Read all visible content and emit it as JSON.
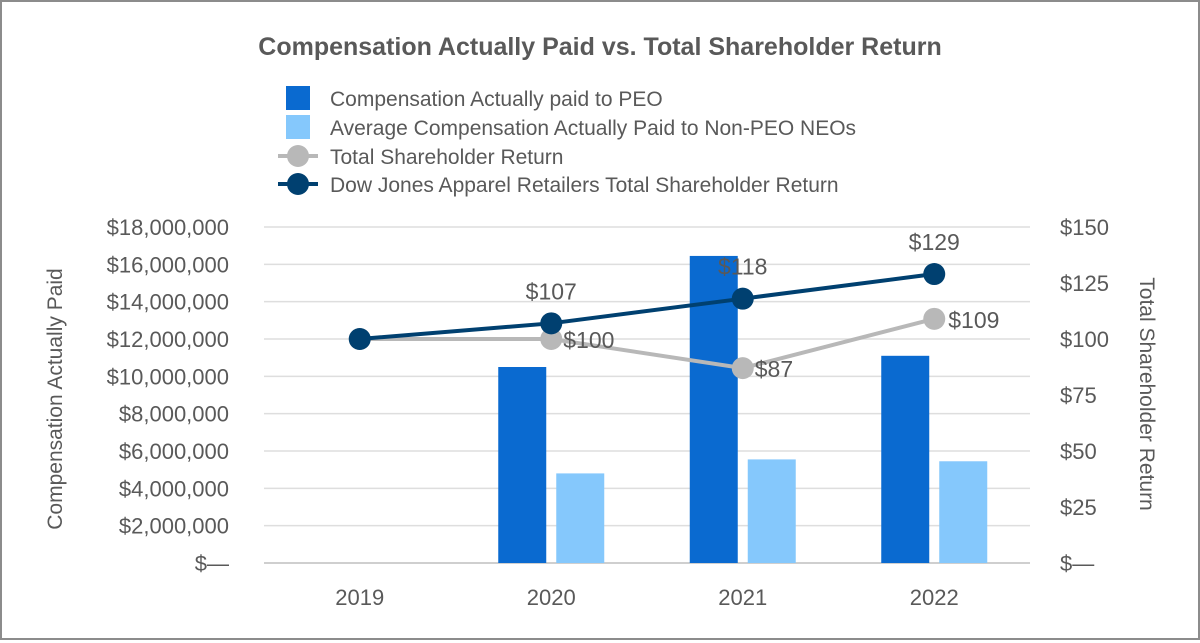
{
  "chart_data": {
    "type": "bar",
    "title": "Compensation Actually Paid vs. Total Shareholder Return",
    "categories": [
      "2019",
      "2020",
      "2021",
      "2022"
    ],
    "ylabel": "Compensation Actually Paid",
    "y2label": "Total Shareholder Return",
    "ylim": [
      0,
      18000000
    ],
    "y2lim": [
      0,
      150
    ],
    "yticks": [
      "$—",
      "$2,000,000",
      "$4,000,000",
      "$6,000,000",
      "$8,000,000",
      "$10,000,000",
      "$12,000,000",
      "$14,000,000",
      "$16,000,000",
      "$18,000,000"
    ],
    "y2ticks": [
      "$—",
      "$25",
      "$50",
      "$75",
      "$100",
      "$125",
      "$150"
    ],
    "legend_position": "top",
    "grid": true,
    "bar_series": [
      {
        "name": "Compensation Actually paid to PEO",
        "color": "#0a6ad0",
        "values": [
          null,
          10500000,
          16450000,
          11100000
        ]
      },
      {
        "name": "Average Compensation Actually Paid to Non-PEO NEOs",
        "color": "#85c8fc",
        "values": [
          null,
          4800000,
          5550000,
          5450000
        ]
      }
    ],
    "line_series": [
      {
        "name": "Total Shareholder Return",
        "color": "#b8b8b8",
        "values": [
          100,
          100,
          87,
          109
        ],
        "labels": [
          null,
          "$100",
          "$87",
          "$109"
        ]
      },
      {
        "name": "Dow Jones Apparel Retailers Total Shareholder Return",
        "color": "#004070",
        "values": [
          100,
          107,
          118,
          129
        ],
        "labels": [
          null,
          "$107",
          "$118",
          "$129"
        ]
      }
    ]
  }
}
